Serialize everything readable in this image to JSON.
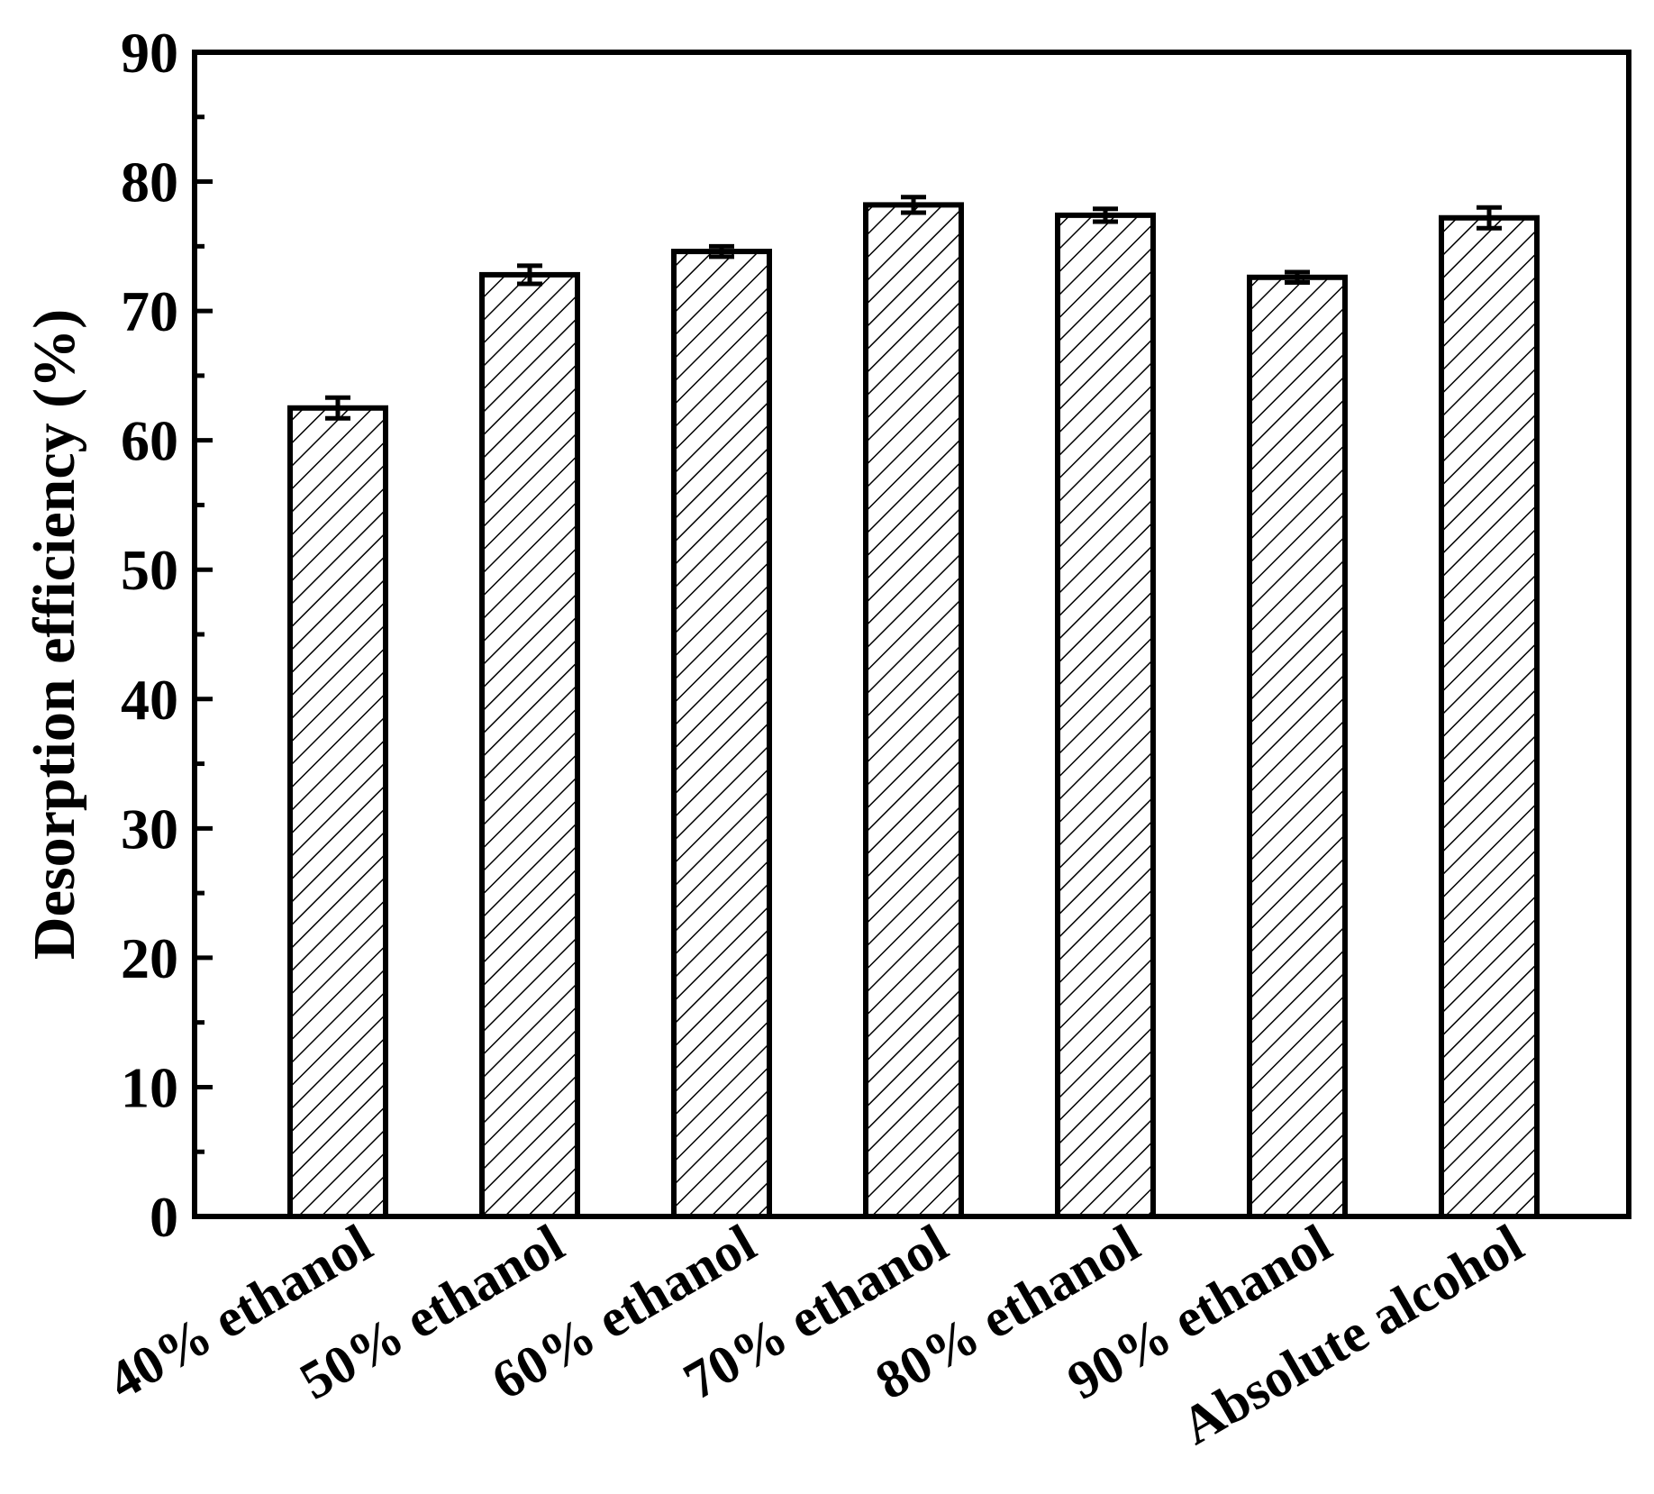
{
  "chart_data": {
    "type": "bar",
    "title": "",
    "xlabel": "",
    "ylabel": "Desorption efficiency (%)",
    "ylim": [
      0,
      90
    ],
    "yticks": [
      0,
      10,
      20,
      30,
      40,
      50,
      60,
      70,
      80,
      90
    ],
    "grid": false,
    "legend": "none",
    "bar_fill": "hatched",
    "colors": {
      "bar_stroke": "#000000",
      "bar_fill": "#ffffff",
      "hatch": "#000000"
    },
    "categories": [
      "40% ethanol",
      "50% ethanol",
      "60% ethanol",
      "70% ethanol",
      "80% ethanol",
      "90% ethanol",
      "Absolute alcohol"
    ],
    "values": [
      62.5,
      72.8,
      74.6,
      78.2,
      77.4,
      72.6,
      77.2
    ],
    "errors": [
      0.8,
      0.7,
      0.4,
      0.6,
      0.5,
      0.4,
      0.8
    ]
  }
}
